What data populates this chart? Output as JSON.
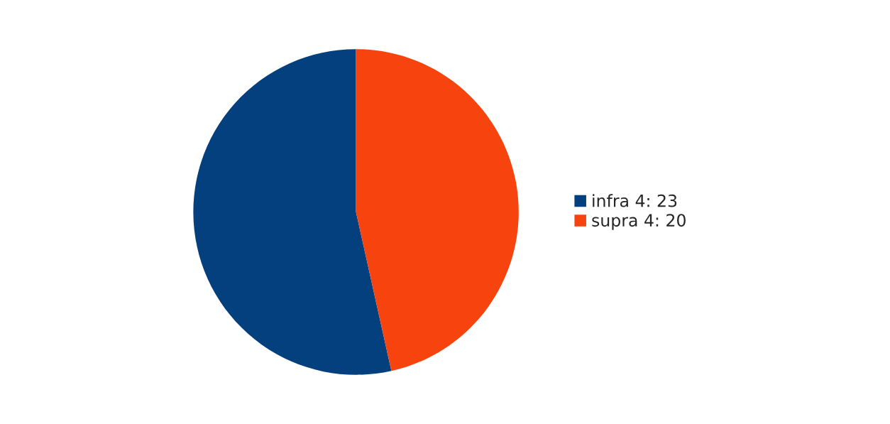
{
  "chart_data": {
    "type": "pie",
    "categories": [
      "infra 4: 23",
      "supra 4: 20"
    ],
    "values": [
      23,
      20
    ],
    "colors": [
      "#043f7e",
      "#f7440f"
    ],
    "legend": "right"
  }
}
